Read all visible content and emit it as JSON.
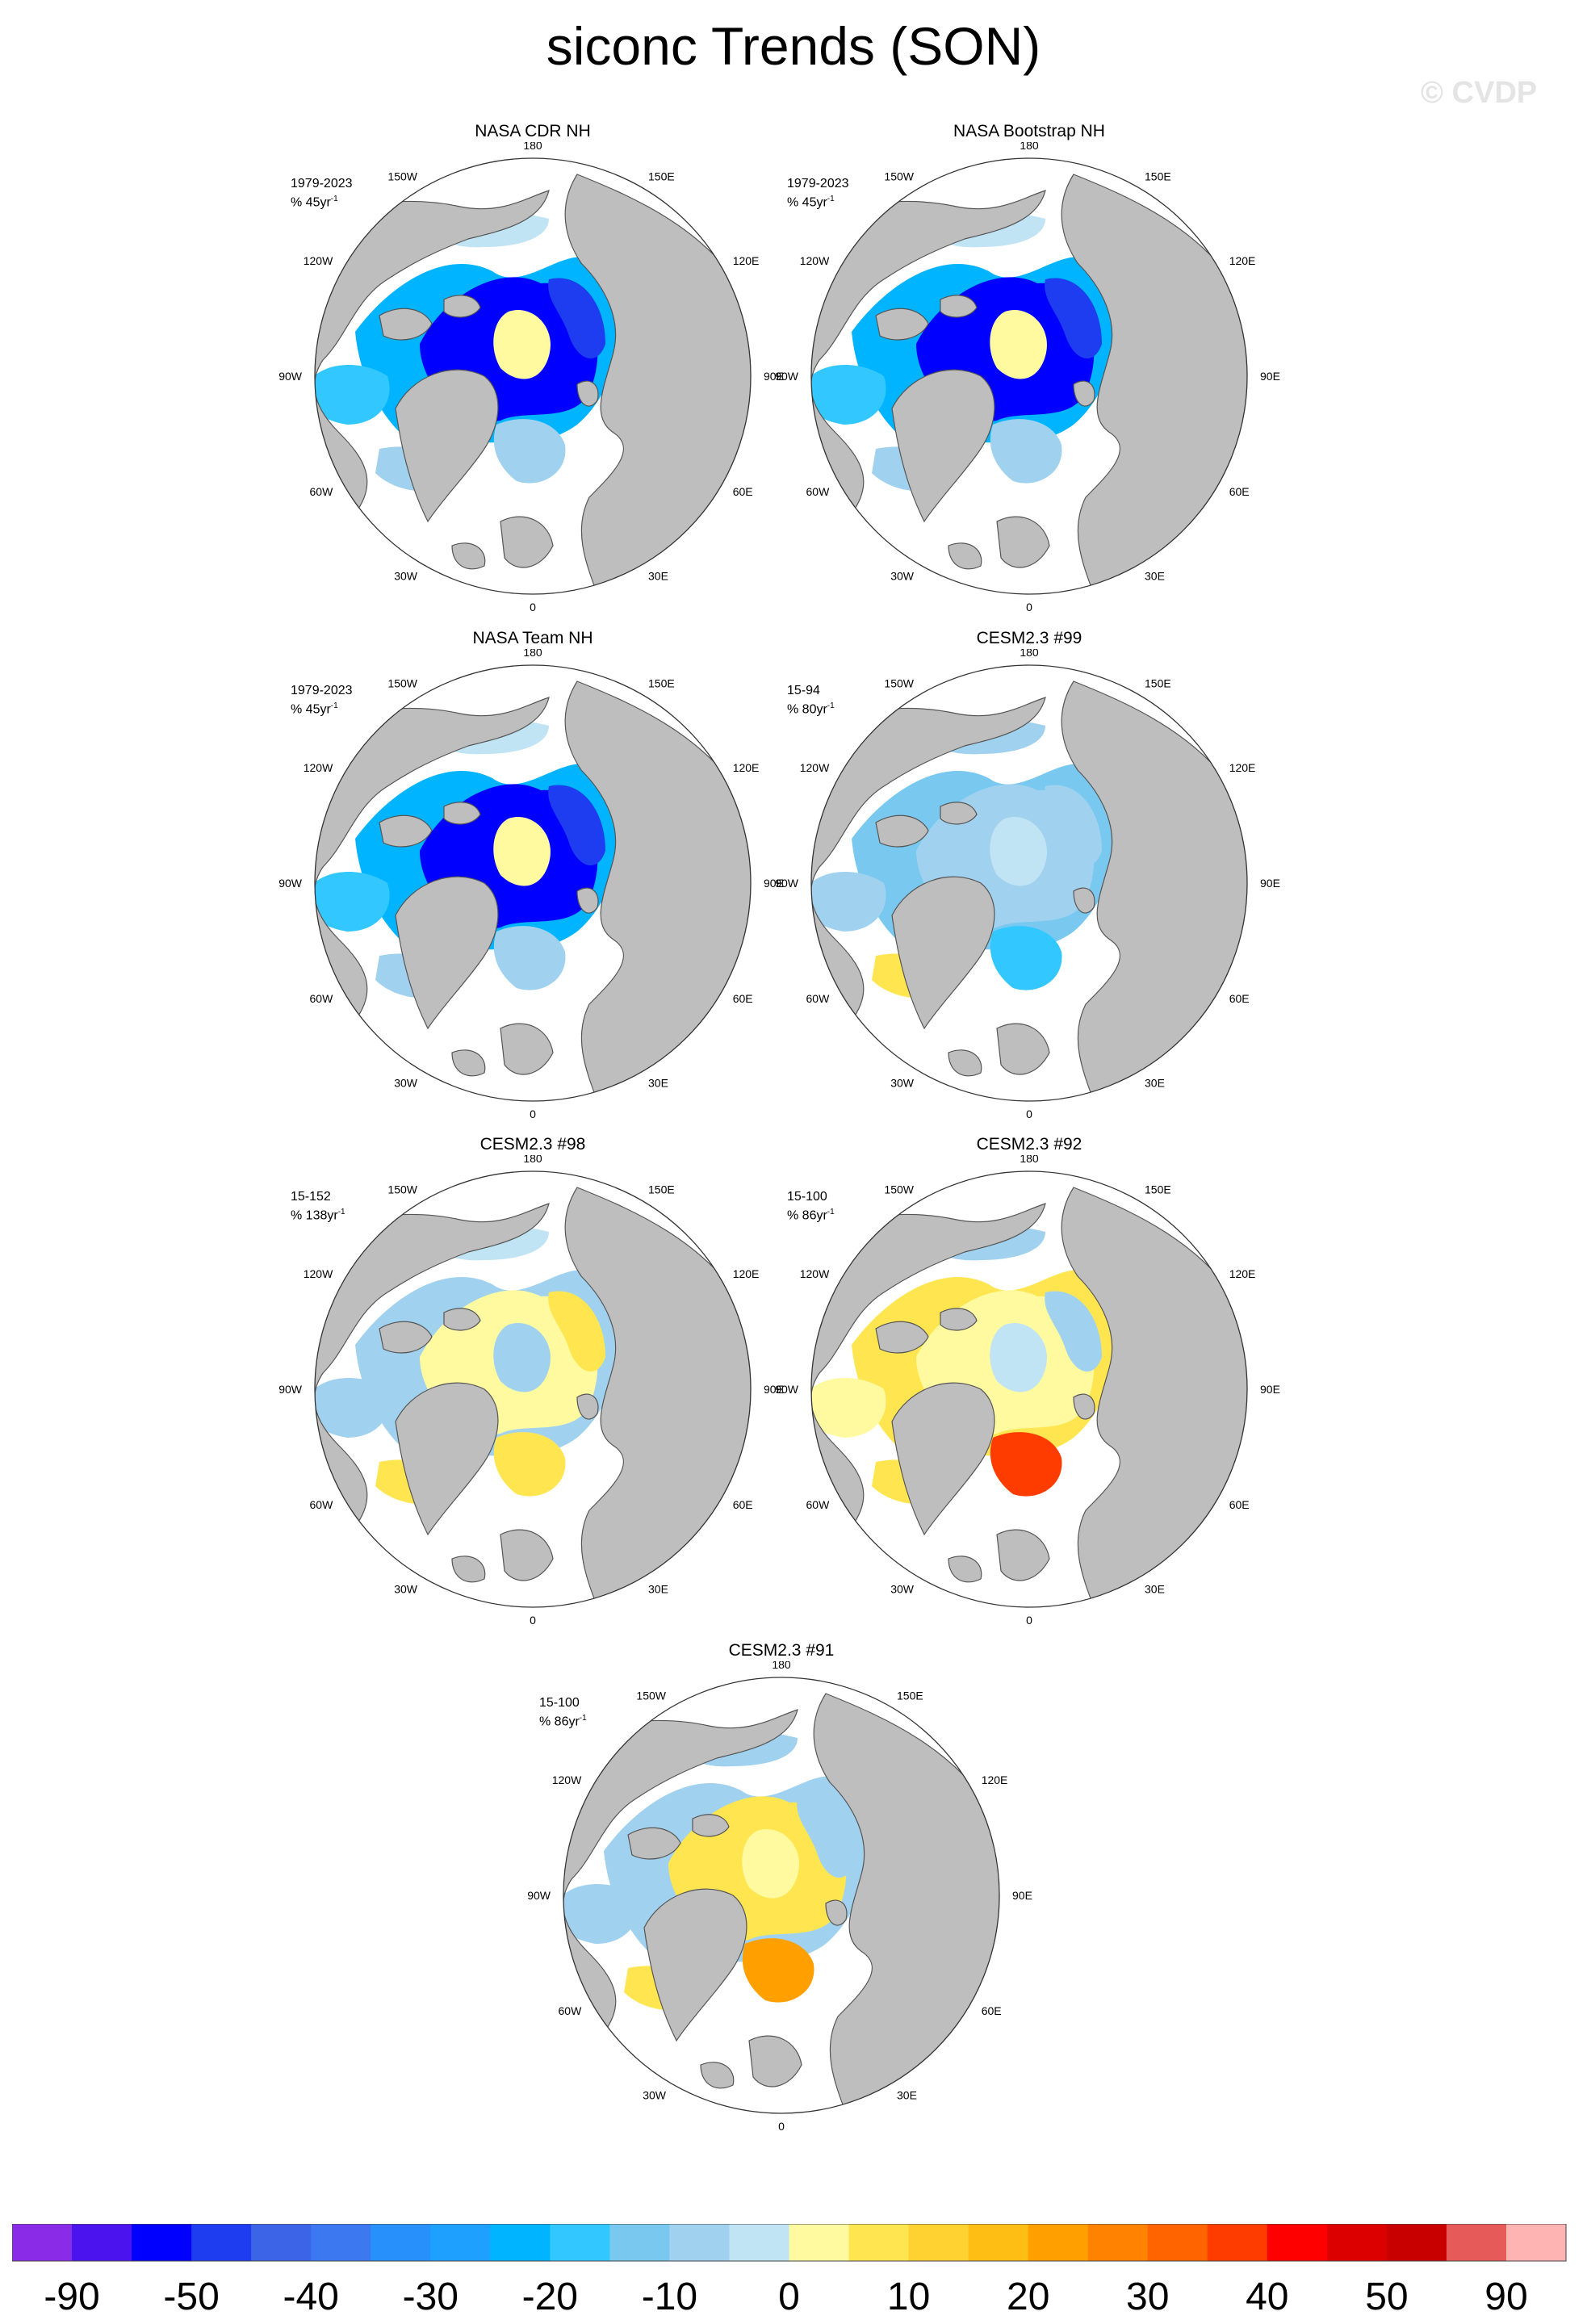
{
  "title": "siconc Trends (SON)",
  "watermark": "© CVDP",
  "lon_labels": [
    "180",
    "150E",
    "120E",
    "90E",
    "60E",
    "30E",
    "0",
    "30W",
    "60W",
    "90W",
    "120W",
    "150W"
  ],
  "panels": [
    {
      "title": "NASA CDR NH",
      "period": "1979-2023",
      "unit_prefix": "% 45yr",
      "unit_exp": "-1",
      "pattern": "strong_loss"
    },
    {
      "title": "NASA Bootstrap NH",
      "period": "1979-2023",
      "unit_prefix": "% 45yr",
      "unit_exp": "-1",
      "pattern": "strong_loss"
    },
    {
      "title": "NASA Team NH",
      "period": "1979-2023",
      "unit_prefix": "% 45yr",
      "unit_exp": "-1",
      "pattern": "strong_loss"
    },
    {
      "title": "CESM2.3 #99",
      "period": "15-94",
      "unit_prefix": "% 80yr",
      "unit_exp": "-1",
      "pattern": "weak_loss"
    },
    {
      "title": "CESM2.3 #98",
      "period": "15-152",
      "unit_prefix": "% 138yr",
      "unit_exp": "-1",
      "pattern": "mixed_gain"
    },
    {
      "title": "CESM2.3 #92",
      "period": "15-100",
      "unit_prefix": "% 86yr",
      "unit_exp": "-1",
      "pattern": "gain"
    },
    {
      "title": "CESM2.3 #91",
      "period": "15-100",
      "unit_prefix": "% 86yr",
      "unit_exp": "-1",
      "pattern": "mixed"
    }
  ],
  "colorbar": {
    "colors": [
      "#8a2be8",
      "#4b14ee",
      "#0000ff",
      "#1e3cf0",
      "#3c64e6",
      "#3c78f0",
      "#2890fa",
      "#1ea0ff",
      "#00b4ff",
      "#32c8ff",
      "#78c8f0",
      "#a0d2f0",
      "#c0e4f4",
      "#fffaa0",
      "#ffe650",
      "#ffd232",
      "#ffbe14",
      "#ffa000",
      "#ff8200",
      "#ff6400",
      "#ff3c00",
      "#ff0000",
      "#dc0000",
      "#c80000",
      "#e65a5a",
      "#ffb4b4"
    ],
    "tick_labels": [
      "-90",
      "-50",
      "-40",
      "-30",
      "-20",
      "-10",
      "0",
      "10",
      "20",
      "30",
      "40",
      "50",
      "90"
    ]
  },
  "colors": {
    "land": "#bebebe",
    "ocean": "#ffffff",
    "coast": "#555555"
  }
}
